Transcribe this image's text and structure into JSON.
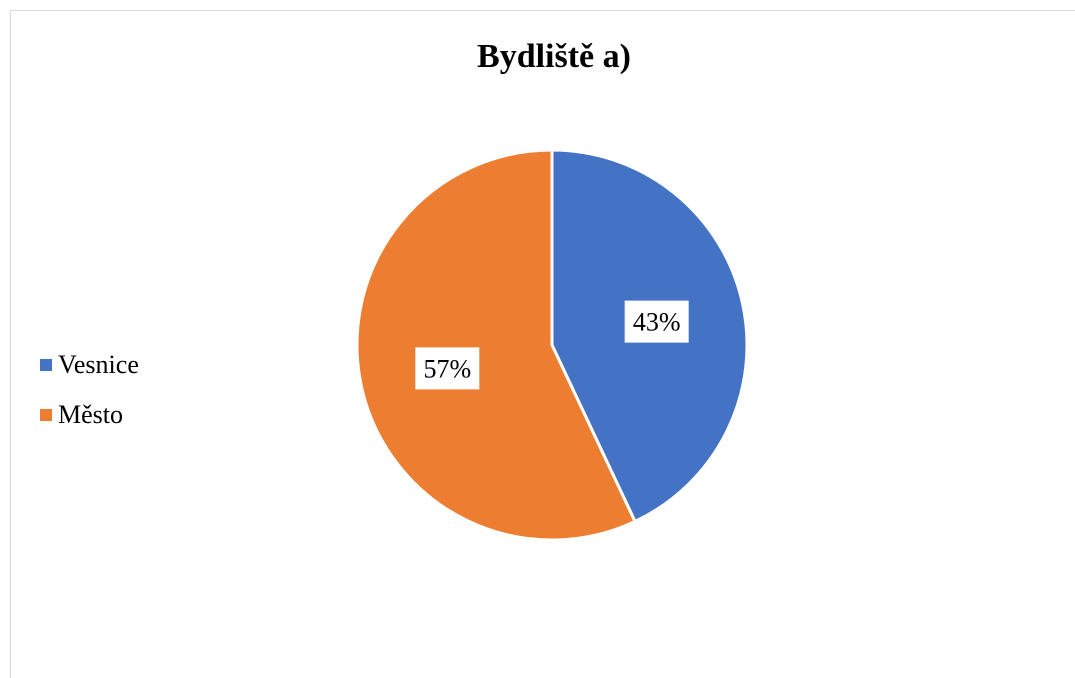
{
  "chart_data": {
    "type": "pie",
    "title": "Bydliště a)",
    "categories": [
      "Vesnice",
      "Město"
    ],
    "values": [
      43,
      57
    ],
    "data_labels": [
      "43%",
      "57%"
    ],
    "colors": [
      "#4472C4",
      "#ED7D31"
    ],
    "legend_position": "left",
    "start_angle_deg": 0,
    "direction": "clockwise"
  }
}
